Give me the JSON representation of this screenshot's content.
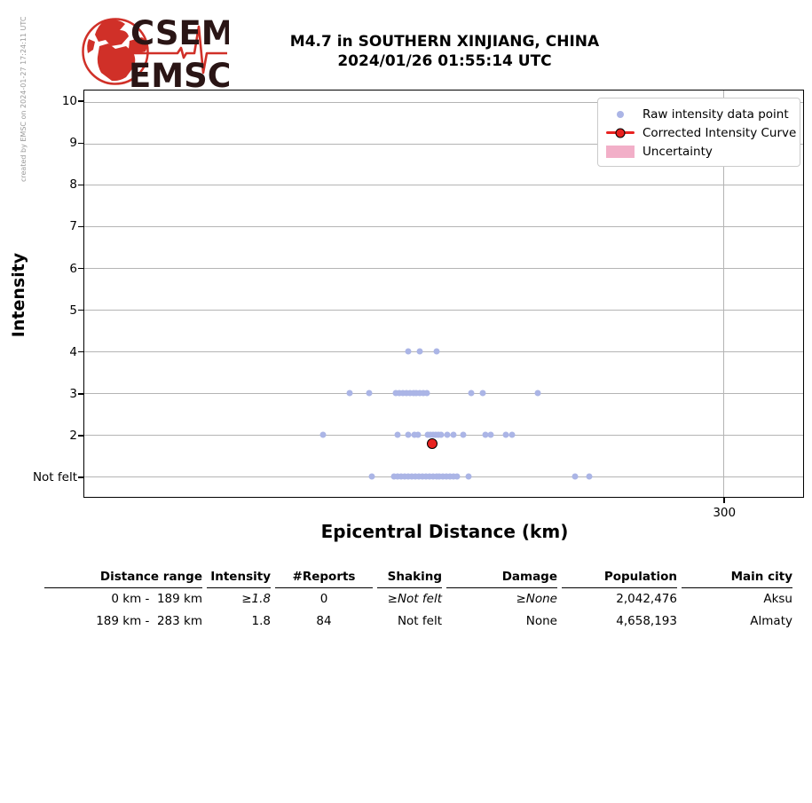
{
  "credit": "created by EMSC on 2024-01-27 17:24:11 UTC",
  "logo": {
    "word1": "CSEM",
    "word2": "EMSC"
  },
  "title": {
    "line1": "M4.7 in SOUTHERN XINJIANG, CHINA",
    "line2": "2024/01/26 01:55:14 UTC"
  },
  "colors": {
    "raw_point": "#abb5e6",
    "corrected": "#e82220",
    "uncertainty": "#f2afc8",
    "grid": "#b4b4b4",
    "logo_red": "#d03028",
    "logo_text": "#2a1515"
  },
  "chart_data": {
    "type": "scatter",
    "xlabel": "Epicentral Distance (km)",
    "ylabel": "Intensity",
    "xlim": [
      0,
      337.3
    ],
    "ylim": [
      0.51,
      10.28
    ],
    "grid": true,
    "legend_position": "upper right",
    "x_ticks": [
      {
        "value": 300,
        "label": "300"
      }
    ],
    "y_ticks": [
      {
        "value": 10,
        "label": "10"
      },
      {
        "value": 9,
        "label": "9"
      },
      {
        "value": 8,
        "label": "8"
      },
      {
        "value": 7,
        "label": "7"
      },
      {
        "value": 6,
        "label": "6"
      },
      {
        "value": 5,
        "label": "5"
      },
      {
        "value": 4,
        "label": "4"
      },
      {
        "value": 3,
        "label": "3"
      },
      {
        "value": 2,
        "label": "2"
      },
      {
        "value": 1,
        "label": "Not felt"
      }
    ],
    "series": [
      {
        "name": "Raw intensity data point",
        "kind": "scatter",
        "points": [
          [
            152.0,
            4
          ],
          [
            157.3,
            4
          ],
          [
            165.4,
            4
          ],
          [
            124.6,
            3
          ],
          [
            133.8,
            3
          ],
          [
            146.2,
            3
          ],
          [
            147.9,
            3
          ],
          [
            149.6,
            3
          ],
          [
            151.2,
            3
          ],
          [
            152.9,
            3
          ],
          [
            154.5,
            3
          ],
          [
            155.8,
            3
          ],
          [
            157.5,
            3
          ],
          [
            159.1,
            3
          ],
          [
            160.8,
            3
          ],
          [
            181.6,
            3
          ],
          [
            186.9,
            3
          ],
          [
            212.7,
            3
          ],
          [
            112.2,
            2
          ],
          [
            147.1,
            2
          ],
          [
            152.1,
            2
          ],
          [
            155.0,
            2
          ],
          [
            156.6,
            2
          ],
          [
            161.2,
            2
          ],
          [
            162.4,
            2
          ],
          [
            163.7,
            2
          ],
          [
            164.9,
            2
          ],
          [
            166.2,
            2
          ],
          [
            167.4,
            2
          ],
          [
            170.3,
            2
          ],
          [
            173.2,
            2
          ],
          [
            177.8,
            2
          ],
          [
            188.2,
            2
          ],
          [
            190.7,
            2
          ],
          [
            197.8,
            2
          ],
          [
            200.7,
            2
          ],
          [
            135.0,
            1
          ],
          [
            145.4,
            1
          ],
          [
            147.1,
            1
          ],
          [
            148.7,
            1
          ],
          [
            150.4,
            1
          ],
          [
            152.1,
            1
          ],
          [
            153.7,
            1
          ],
          [
            155.4,
            1
          ],
          [
            157.0,
            1
          ],
          [
            158.7,
            1
          ],
          [
            160.4,
            1
          ],
          [
            162.0,
            1
          ],
          [
            163.7,
            1
          ],
          [
            165.4,
            1
          ],
          [
            166.6,
            1
          ],
          [
            168.3,
            1
          ],
          [
            169.9,
            1
          ],
          [
            171.6,
            1
          ],
          [
            173.2,
            1
          ],
          [
            174.9,
            1
          ],
          [
            180.3,
            1
          ],
          [
            230.2,
            1
          ],
          [
            236.8,
            1
          ]
        ]
      },
      {
        "name": "Corrected Intensity Curve",
        "kind": "line_marker",
        "points": [
          [
            163.3,
            1.8
          ]
        ]
      },
      {
        "name": "Uncertainty",
        "kind": "band",
        "points": []
      }
    ]
  },
  "table": {
    "headers": [
      "Distance range",
      "Intensity",
      "#Reports",
      "Shaking",
      "Damage",
      "Population",
      "Main city"
    ],
    "rows": [
      [
        "0 km -  189 km",
        "≥1.8",
        "0",
        "≥Not felt",
        "≥None",
        "2,042,476",
        "Aksu"
      ],
      [
        "189 km -  283 km",
        "1.8",
        "84",
        "Not felt",
        "None",
        "4,658,193",
        "Almaty"
      ]
    ]
  }
}
